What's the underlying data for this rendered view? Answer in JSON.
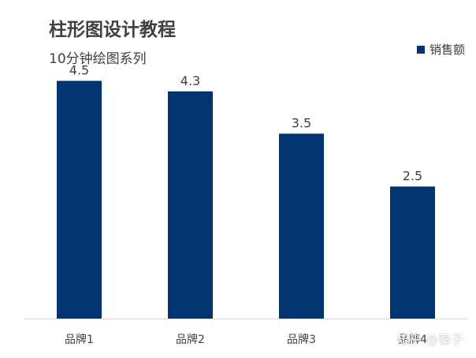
{
  "chart_data": {
    "type": "bar",
    "title": "柱形图设计教程",
    "subtitle": "10分钟绘图系列",
    "categories": [
      "品牌1",
      "品牌2",
      "品牌3",
      "品牌4"
    ],
    "series": [
      {
        "name": "销售额",
        "values": [
          4.5,
          4.3,
          3.5,
          2.5
        ],
        "color": "#003570"
      }
    ],
    "ylim": [
      0,
      5
    ],
    "grid": false,
    "legend_position": "top-right",
    "data_labels": [
      "4.5",
      "4.3",
      "3.5",
      "2.5"
    ]
  },
  "watermark": "知乎 @秦子"
}
